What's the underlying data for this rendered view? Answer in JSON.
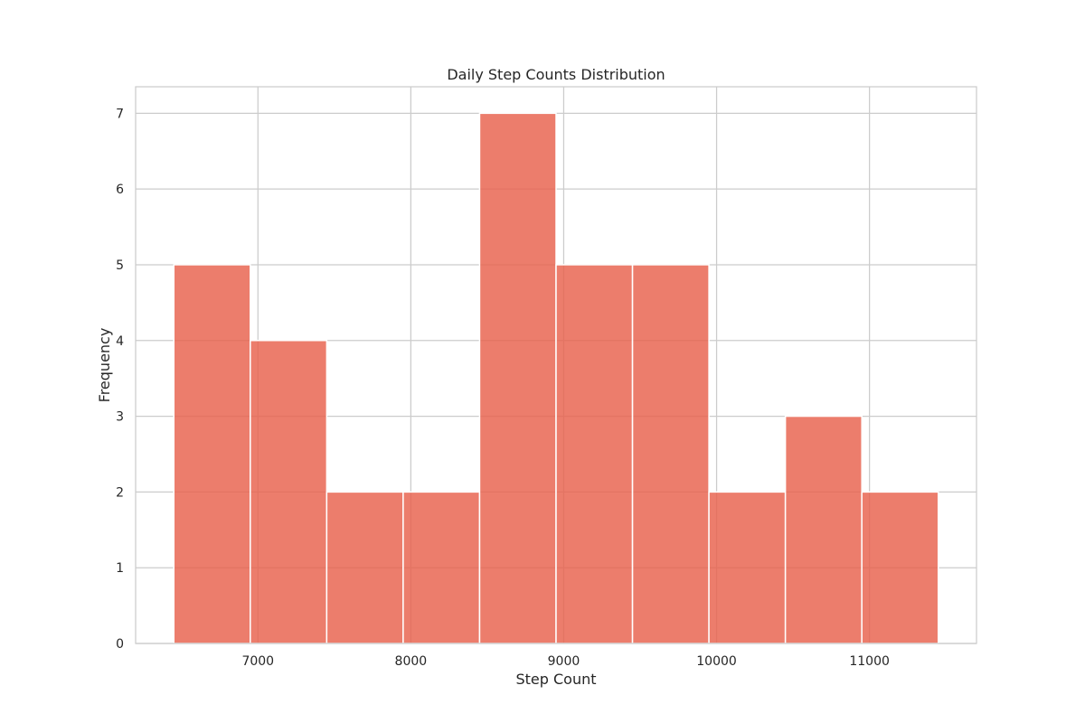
{
  "chart_data": {
    "type": "bar",
    "title": "Daily Step Counts Distribution",
    "xlabel": "Step Count",
    "ylabel": "Frequency",
    "bin_edges": [
      6450,
      6950,
      7450,
      7950,
      8450,
      8950,
      9450,
      9950,
      10450,
      10950,
      11450
    ],
    "values": [
      5,
      4,
      2,
      2,
      7,
      5,
      5,
      2,
      3,
      2
    ],
    "xlim": [
      6200,
      11700
    ],
    "ylim": [
      0,
      7.35
    ],
    "xticks": [
      7000,
      8000,
      9000,
      10000,
      11000
    ],
    "yticks": [
      0,
      1,
      2,
      3,
      4,
      5,
      6,
      7
    ],
    "grid": true,
    "bar_color": "#e8604c",
    "grid_color": "#cccccc",
    "frame_color": "#cccccc"
  }
}
